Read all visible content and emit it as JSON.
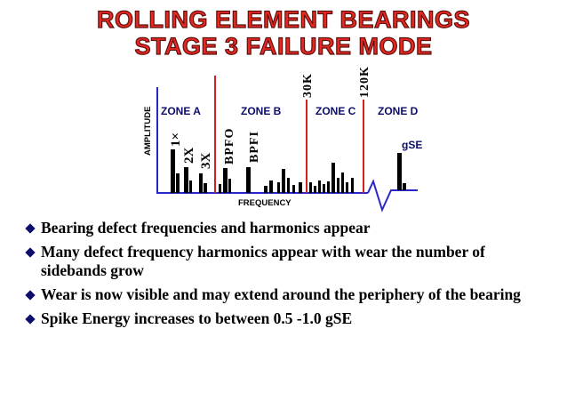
{
  "title": {
    "line1": "ROLLING ELEMENT BEARINGS",
    "line2": "STAGE 3 FAILURE MODE"
  },
  "diagram": {
    "y_axis_label": "AMPLITUDE",
    "x_axis_label": "FREQUENCY",
    "zones": [
      "ZONE A",
      "ZONE B",
      "ZONE C",
      "ZONE D"
    ],
    "peak_labels": [
      "1×",
      "2X",
      "3X",
      "BPFO",
      "BPFI",
      "gSE"
    ],
    "boundary_labels": [
      "30K",
      "120K"
    ],
    "colors": {
      "axis": "#2828c8",
      "boundary": "#d81e1e",
      "peaks": "#000000",
      "zone_text": "#0d0d6b"
    }
  },
  "bullets": [
    "Bearing defect frequencies and harmonics appear",
    "Many defect frequency harmonics appear with wear the number of sidebands grow",
    "Wear is now visible and may extend around the periphery of the bearing",
    "Spike Energy increases to between 0.5 -1.0 gSE"
  ]
}
